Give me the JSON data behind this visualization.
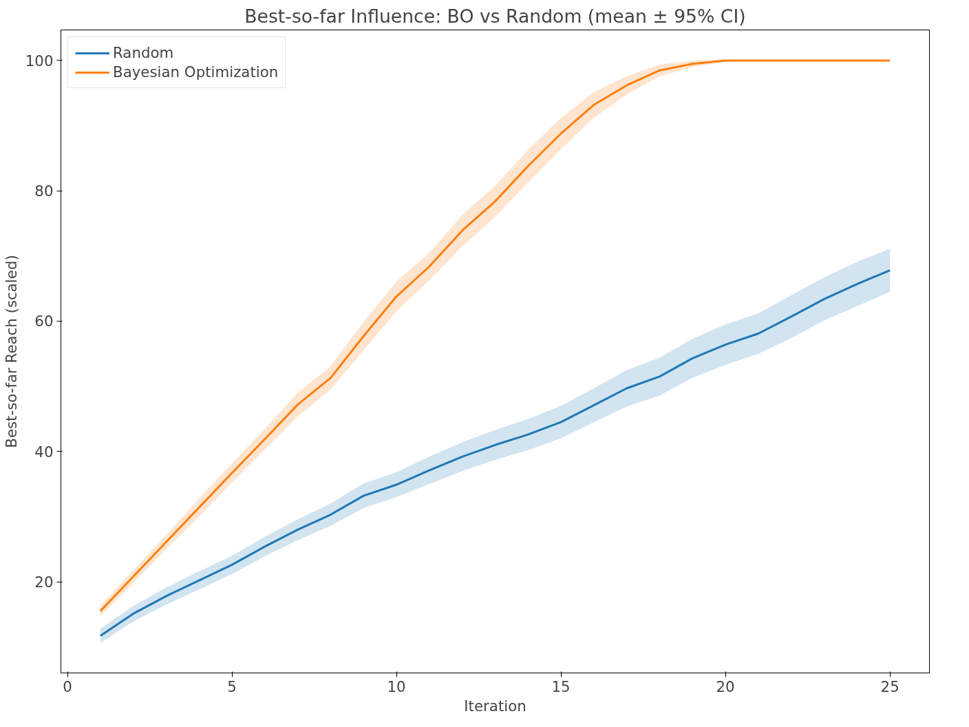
{
  "chart_data": {
    "type": "line",
    "title": "Best-so-far Influence: BO vs Random (mean ± 95% CI)",
    "xlabel": "Iteration",
    "ylabel": "Best-so-far Reach (scaled)",
    "x": [
      1,
      2,
      3,
      4,
      5,
      6,
      7,
      8,
      9,
      10,
      11,
      12,
      13,
      14,
      15,
      16,
      17,
      18,
      19,
      20,
      21,
      22,
      23,
      24,
      25
    ],
    "series": [
      {
        "name": "Random",
        "color": "#1f77b4",
        "values": [
          11.7,
          15.1,
          17.8,
          20.2,
          22.6,
          25.4,
          28.0,
          30.3,
          33.2,
          34.9,
          37.1,
          39.2,
          41.0,
          42.6,
          44.5,
          47.1,
          49.7,
          51.5,
          54.3,
          56.4,
          58.1,
          60.7,
          63.4,
          65.7,
          67.8
        ],
        "lower": [
          10.6,
          13.9,
          16.5,
          18.8,
          21.2,
          23.9,
          26.4,
          28.6,
          31.3,
          33.0,
          35.0,
          37.0,
          38.7,
          40.2,
          42.0,
          44.5,
          46.9,
          48.6,
          51.3,
          53.3,
          55.0,
          57.4,
          60.1,
          62.3,
          64.5
        ],
        "upper": [
          12.8,
          16.3,
          19.1,
          21.6,
          24.0,
          26.9,
          29.6,
          32.0,
          35.1,
          36.8,
          39.2,
          41.4,
          43.3,
          45.0,
          47.0,
          49.7,
          52.5,
          54.4,
          57.3,
          59.5,
          61.2,
          64.0,
          66.7,
          69.1,
          71.1
        ]
      },
      {
        "name": "Bayesian Optimization",
        "color": "#ff7f0e",
        "values": [
          15.5,
          20.8,
          26.1,
          31.4,
          36.7,
          41.9,
          47.2,
          51.3,
          57.7,
          63.8,
          68.4,
          73.9,
          78.4,
          83.8,
          88.8,
          93.2,
          96.2,
          98.5,
          99.5,
          100,
          100,
          100,
          100,
          100,
          100
        ],
        "lower": [
          14.7,
          19.8,
          25.0,
          30.0,
          35.2,
          40.3,
          45.4,
          49.5,
          55.5,
          61.5,
          66.3,
          71.5,
          76.0,
          81.3,
          86.4,
          91.2,
          94.8,
          97.6,
          99.0,
          99.8,
          100,
          100,
          100,
          100,
          100
        ],
        "upper": [
          16.3,
          21.8,
          27.2,
          32.8,
          38.2,
          43.5,
          49.0,
          53.1,
          59.9,
          66.1,
          70.5,
          76.3,
          80.8,
          86.3,
          91.2,
          95.2,
          97.6,
          99.4,
          100,
          100.2,
          100,
          100,
          100,
          100,
          100
        ]
      }
    ],
    "xlim": [
      -0.2,
      26.2
    ],
    "ylim": [
      6.0,
      104.7
    ],
    "xticks": [
      0,
      5,
      10,
      15,
      20,
      25
    ],
    "yticks": [
      20,
      40,
      60,
      80,
      100
    ],
    "grid": false,
    "legend": "top left",
    "marker": "none",
    "line_style": "solid"
  }
}
